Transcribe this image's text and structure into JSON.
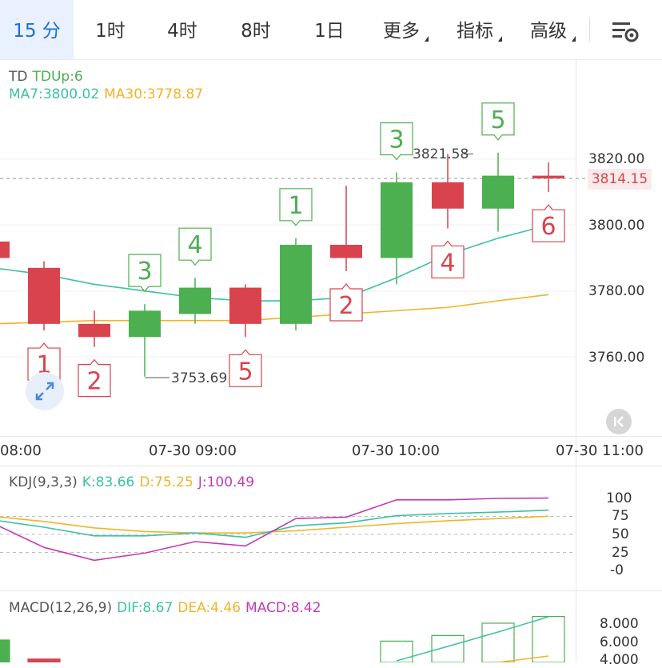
{
  "tabs": [
    {
      "label": "15 分",
      "active": true
    },
    {
      "label": "1时"
    },
    {
      "label": "4时"
    },
    {
      "label": "8时"
    },
    {
      "label": "1日"
    },
    {
      "label": "更多",
      "dropdown": true
    },
    {
      "label": "指标",
      "dropdown": true
    },
    {
      "label": "高级",
      "dropdown": true
    }
  ],
  "settings_icon": "chart-settings-icon",
  "main": {
    "indicator": "TD",
    "td_up": "TDUp:6",
    "ma7": "MA7:3800.02",
    "ma30": "MA30:3778.87",
    "price_axis": [
      "3820.00",
      "3800.00",
      "3780.00",
      "3760.00"
    ],
    "current_price": "3814.15",
    "high_label": "3821.58",
    "low_label": "3753.69",
    "time_axis": [
      "08:00",
      "07-30 09:00",
      "07-30 10:00",
      "07-30 11:00"
    ],
    "expand_icon": "expand-icon",
    "back_icon": "back-to-latest-icon",
    "colors": {
      "up": "#4caf50",
      "down": "#d9434e",
      "ma7": "#3cc2a2",
      "ma30": "#f0b429",
      "tab_active": "#1d6fd6"
    },
    "candles": [
      {
        "open": 3795,
        "close": 3790,
        "high": 3796,
        "low": 3788
      },
      {
        "open": 3787,
        "close": 3770,
        "high": 3789,
        "low": 3768,
        "td": "1"
      },
      {
        "open": 3770,
        "close": 3766,
        "high": 3774,
        "low": 3763,
        "td": "2"
      },
      {
        "open": 3766,
        "close": 3774,
        "high": 3776,
        "low": 3754,
        "td": "3"
      },
      {
        "open": 3773,
        "close": 3781,
        "high": 3784,
        "low": 3770,
        "td": "4"
      },
      {
        "open": 3781,
        "close": 3770,
        "high": 3782,
        "low": 3766,
        "td": "5"
      },
      {
        "open": 3770,
        "close": 3794,
        "high": 3796,
        "low": 3768,
        "td": "1"
      },
      {
        "open": 3794,
        "close": 3790,
        "high": 3812,
        "low": 3786,
        "td": "2"
      },
      {
        "open": 3790,
        "close": 3813,
        "high": 3816,
        "low": 3782,
        "td": "3"
      },
      {
        "open": 3813,
        "close": 3805,
        "high": 3821.58,
        "low": 3799,
        "td": "4"
      },
      {
        "open": 3805,
        "close": 3815,
        "high": 3822,
        "low": 3798,
        "td": "5"
      },
      {
        "open": 3815,
        "close": 3814.15,
        "high": 3819,
        "low": 3810,
        "td": "6"
      }
    ],
    "ma7_values": [
      3787,
      3785,
      3782,
      3780,
      3778,
      3777,
      3777,
      3778,
      3784,
      3791,
      3796,
      3800.02
    ],
    "ma30_values": [
      3770,
      3770.5,
      3771,
      3771,
      3771,
      3771,
      3772,
      3773,
      3774,
      3775,
      3777,
      3778.87
    ]
  },
  "kdj": {
    "label": "KDJ(9,3,3)",
    "k": "K:83.66",
    "d": "D:75.25",
    "j": "J:100.49",
    "axis": [
      "100",
      "75",
      "50",
      "25",
      "-0"
    ],
    "k_values": [
      70,
      60,
      48,
      48,
      52,
      46,
      62,
      66,
      76,
      79,
      81,
      83.66
    ],
    "d_values": [
      75,
      68,
      59,
      54,
      52,
      52,
      55,
      60,
      65,
      69,
      72,
      75.25
    ],
    "j_values": [
      65,
      32,
      14,
      24,
      40,
      34,
      72,
      74,
      98,
      98,
      100,
      100.49
    ]
  },
  "macd": {
    "label": "MACD(12,26,9)",
    "dif": "DIF:8.67",
    "dea": "DEA:4.46",
    "macd": "MACD:8.42",
    "axis": [
      "8.000",
      "6.000",
      "4.000"
    ]
  }
}
